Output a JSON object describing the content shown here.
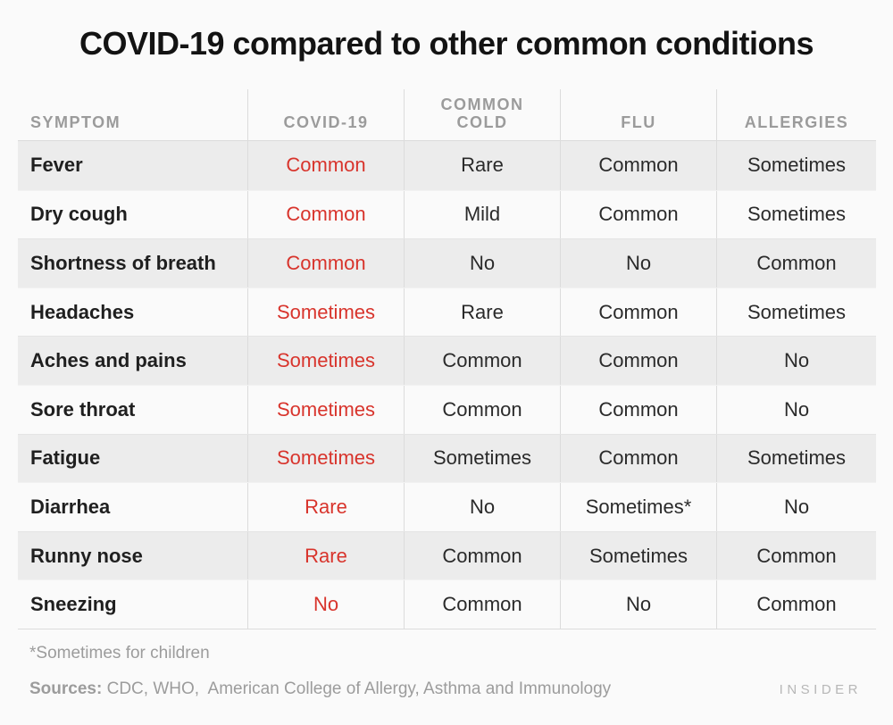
{
  "chart_data": {
    "type": "table",
    "title": "COVID-19 compared to other common conditions",
    "columns": [
      "SYMPTOM",
      "COVID-19",
      "COMMON COLD",
      "FLU",
      "ALLERGIES"
    ],
    "rows": [
      {
        "symptom": "Fever",
        "values": [
          "Common",
          "Rare",
          "Common",
          "Sometimes"
        ]
      },
      {
        "symptom": "Dry cough",
        "values": [
          "Common",
          "Mild",
          "Common",
          "Sometimes"
        ]
      },
      {
        "symptom": "Shortness of breath",
        "values": [
          "Common",
          "No",
          "No",
          "Common"
        ]
      },
      {
        "symptom": "Headaches",
        "values": [
          "Sometimes",
          "Rare",
          "Common",
          "Sometimes"
        ]
      },
      {
        "symptom": "Aches and pains",
        "values": [
          "Sometimes",
          "Common",
          "Common",
          "No"
        ]
      },
      {
        "symptom": "Sore throat",
        "values": [
          "Sometimes",
          "Common",
          "Common",
          "No"
        ]
      },
      {
        "symptom": "Fatigue",
        "values": [
          "Sometimes",
          "Sometimes",
          "Common",
          "Sometimes"
        ]
      },
      {
        "symptom": "Diarrhea",
        "values": [
          "Rare",
          "No",
          "Sometimes*",
          "No"
        ]
      },
      {
        "symptom": "Runny nose",
        "values": [
          "Rare",
          "Common",
          "Sometimes",
          "Common"
        ]
      },
      {
        "symptom": "Sneezing",
        "values": [
          "No",
          "Common",
          "No",
          "Common"
        ]
      }
    ],
    "footnote": "*Sometimes for children",
    "highlight_column": "COVID-19"
  },
  "sources": {
    "label": "Sources:",
    "text": " CDC, WHO,  American College of Allergy, Asthma and Immunology"
  },
  "logo": "INSIDER",
  "colors": {
    "background": "#fafafa",
    "row_stripe": "#ececec",
    "divider": "#dcdcdc",
    "accent_red": "#d8342c",
    "header_gray": "#9b9b9b",
    "text_dark": "#2a2a2a",
    "footer_gray": "#9c9c9c",
    "logo_gray": "#b7b7b7"
  }
}
